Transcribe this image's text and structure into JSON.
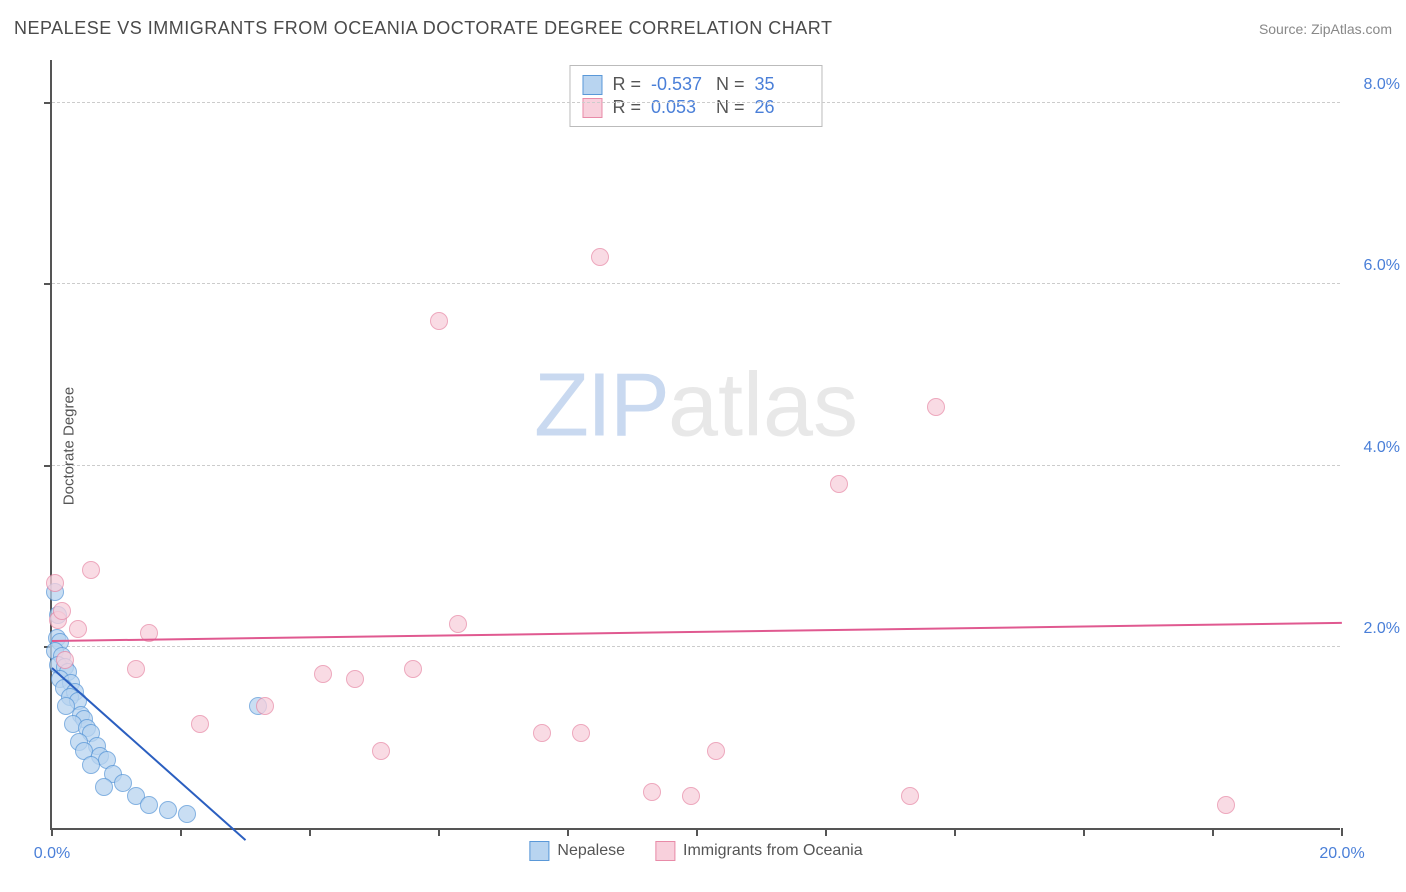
{
  "title": "NEPALESE VS IMMIGRANTS FROM OCEANIA DOCTORATE DEGREE CORRELATION CHART",
  "source_label": "Source: ",
  "source_name": "ZipAtlas.com",
  "y_axis_label": "Doctorate Degree",
  "watermark_a": "ZIP",
  "watermark_b": "atlas",
  "chart": {
    "type": "scatter",
    "xlim": [
      0,
      20
    ],
    "ylim": [
      0,
      8.5
    ],
    "x_ticks": [
      0,
      2,
      4,
      6,
      8,
      10,
      12,
      14,
      16,
      18,
      20
    ],
    "x_tick_labels": {
      "0": "0.0%",
      "20": "20.0%"
    },
    "y_ticks": [
      2,
      4,
      6,
      8
    ],
    "y_tick_labels": {
      "2": "2.0%",
      "4": "4.0%",
      "6": "6.0%",
      "8": "8.0%"
    },
    "y_gridlines": [
      2,
      4,
      6,
      8
    ],
    "background_color": "#ffffff",
    "grid_color": "#cccccc",
    "axis_color": "#555555",
    "tick_label_color": "#4a7fd8",
    "series": [
      {
        "name": "Nepalese",
        "legend_label": "Nepalese",
        "fill": "#b8d4f0",
        "stroke": "#5a98d8",
        "line_color": "#2b5fc0",
        "marker_radius": 9,
        "regression": {
          "x1": 0,
          "y1": 1.75,
          "x2": 3.0,
          "y2": -0.15
        },
        "R_label": "R =",
        "R": "-0.537",
        "N_label": "N =",
        "N": "35",
        "points": [
          [
            0.05,
            2.6
          ],
          [
            0.1,
            2.35
          ],
          [
            0.08,
            2.1
          ],
          [
            0.12,
            2.05
          ],
          [
            0.05,
            1.95
          ],
          [
            0.15,
            1.9
          ],
          [
            0.1,
            1.8
          ],
          [
            0.2,
            1.78
          ],
          [
            0.25,
            1.72
          ],
          [
            0.12,
            1.65
          ],
          [
            0.3,
            1.6
          ],
          [
            0.18,
            1.55
          ],
          [
            0.35,
            1.5
          ],
          [
            0.28,
            1.45
          ],
          [
            0.4,
            1.4
          ],
          [
            0.22,
            1.35
          ],
          [
            0.45,
            1.25
          ],
          [
            0.5,
            1.2
          ],
          [
            0.32,
            1.15
          ],
          [
            0.55,
            1.1
          ],
          [
            0.6,
            1.05
          ],
          [
            0.42,
            0.95
          ],
          [
            0.7,
            0.9
          ],
          [
            0.5,
            0.85
          ],
          [
            0.75,
            0.8
          ],
          [
            0.85,
            0.75
          ],
          [
            0.6,
            0.7
          ],
          [
            0.95,
            0.6
          ],
          [
            1.1,
            0.5
          ],
          [
            0.8,
            0.45
          ],
          [
            1.3,
            0.35
          ],
          [
            1.5,
            0.25
          ],
          [
            1.8,
            0.2
          ],
          [
            2.1,
            0.15
          ],
          [
            3.2,
            1.35
          ]
        ]
      },
      {
        "name": "Immigrants from Oceania",
        "legend_label": "Immigrants from Oceania",
        "fill": "#f8d0dc",
        "stroke": "#e88ba8",
        "line_color": "#e05990",
        "marker_radius": 9,
        "regression": {
          "x1": 0,
          "y1": 2.05,
          "x2": 20,
          "y2": 2.25
        },
        "R_label": "R =",
        "R": "0.053",
        "N_label": "N =",
        "N": "26",
        "points": [
          [
            0.05,
            2.7
          ],
          [
            0.1,
            2.3
          ],
          [
            0.6,
            2.85
          ],
          [
            0.15,
            2.4
          ],
          [
            0.2,
            1.85
          ],
          [
            1.3,
            1.75
          ],
          [
            1.5,
            2.15
          ],
          [
            2.3,
            1.15
          ],
          [
            3.3,
            1.35
          ],
          [
            4.2,
            1.7
          ],
          [
            4.7,
            1.65
          ],
          [
            5.1,
            0.85
          ],
          [
            5.6,
            1.75
          ],
          [
            6.0,
            5.6
          ],
          [
            6.3,
            2.25
          ],
          [
            7.6,
            1.05
          ],
          [
            8.2,
            1.05
          ],
          [
            8.5,
            6.3
          ],
          [
            9.3,
            0.4
          ],
          [
            9.9,
            0.35
          ],
          [
            10.3,
            0.85
          ],
          [
            12.2,
            3.8
          ],
          [
            13.3,
            0.35
          ],
          [
            13.7,
            4.65
          ],
          [
            18.2,
            0.25
          ],
          [
            0.4,
            2.2
          ]
        ]
      }
    ]
  }
}
